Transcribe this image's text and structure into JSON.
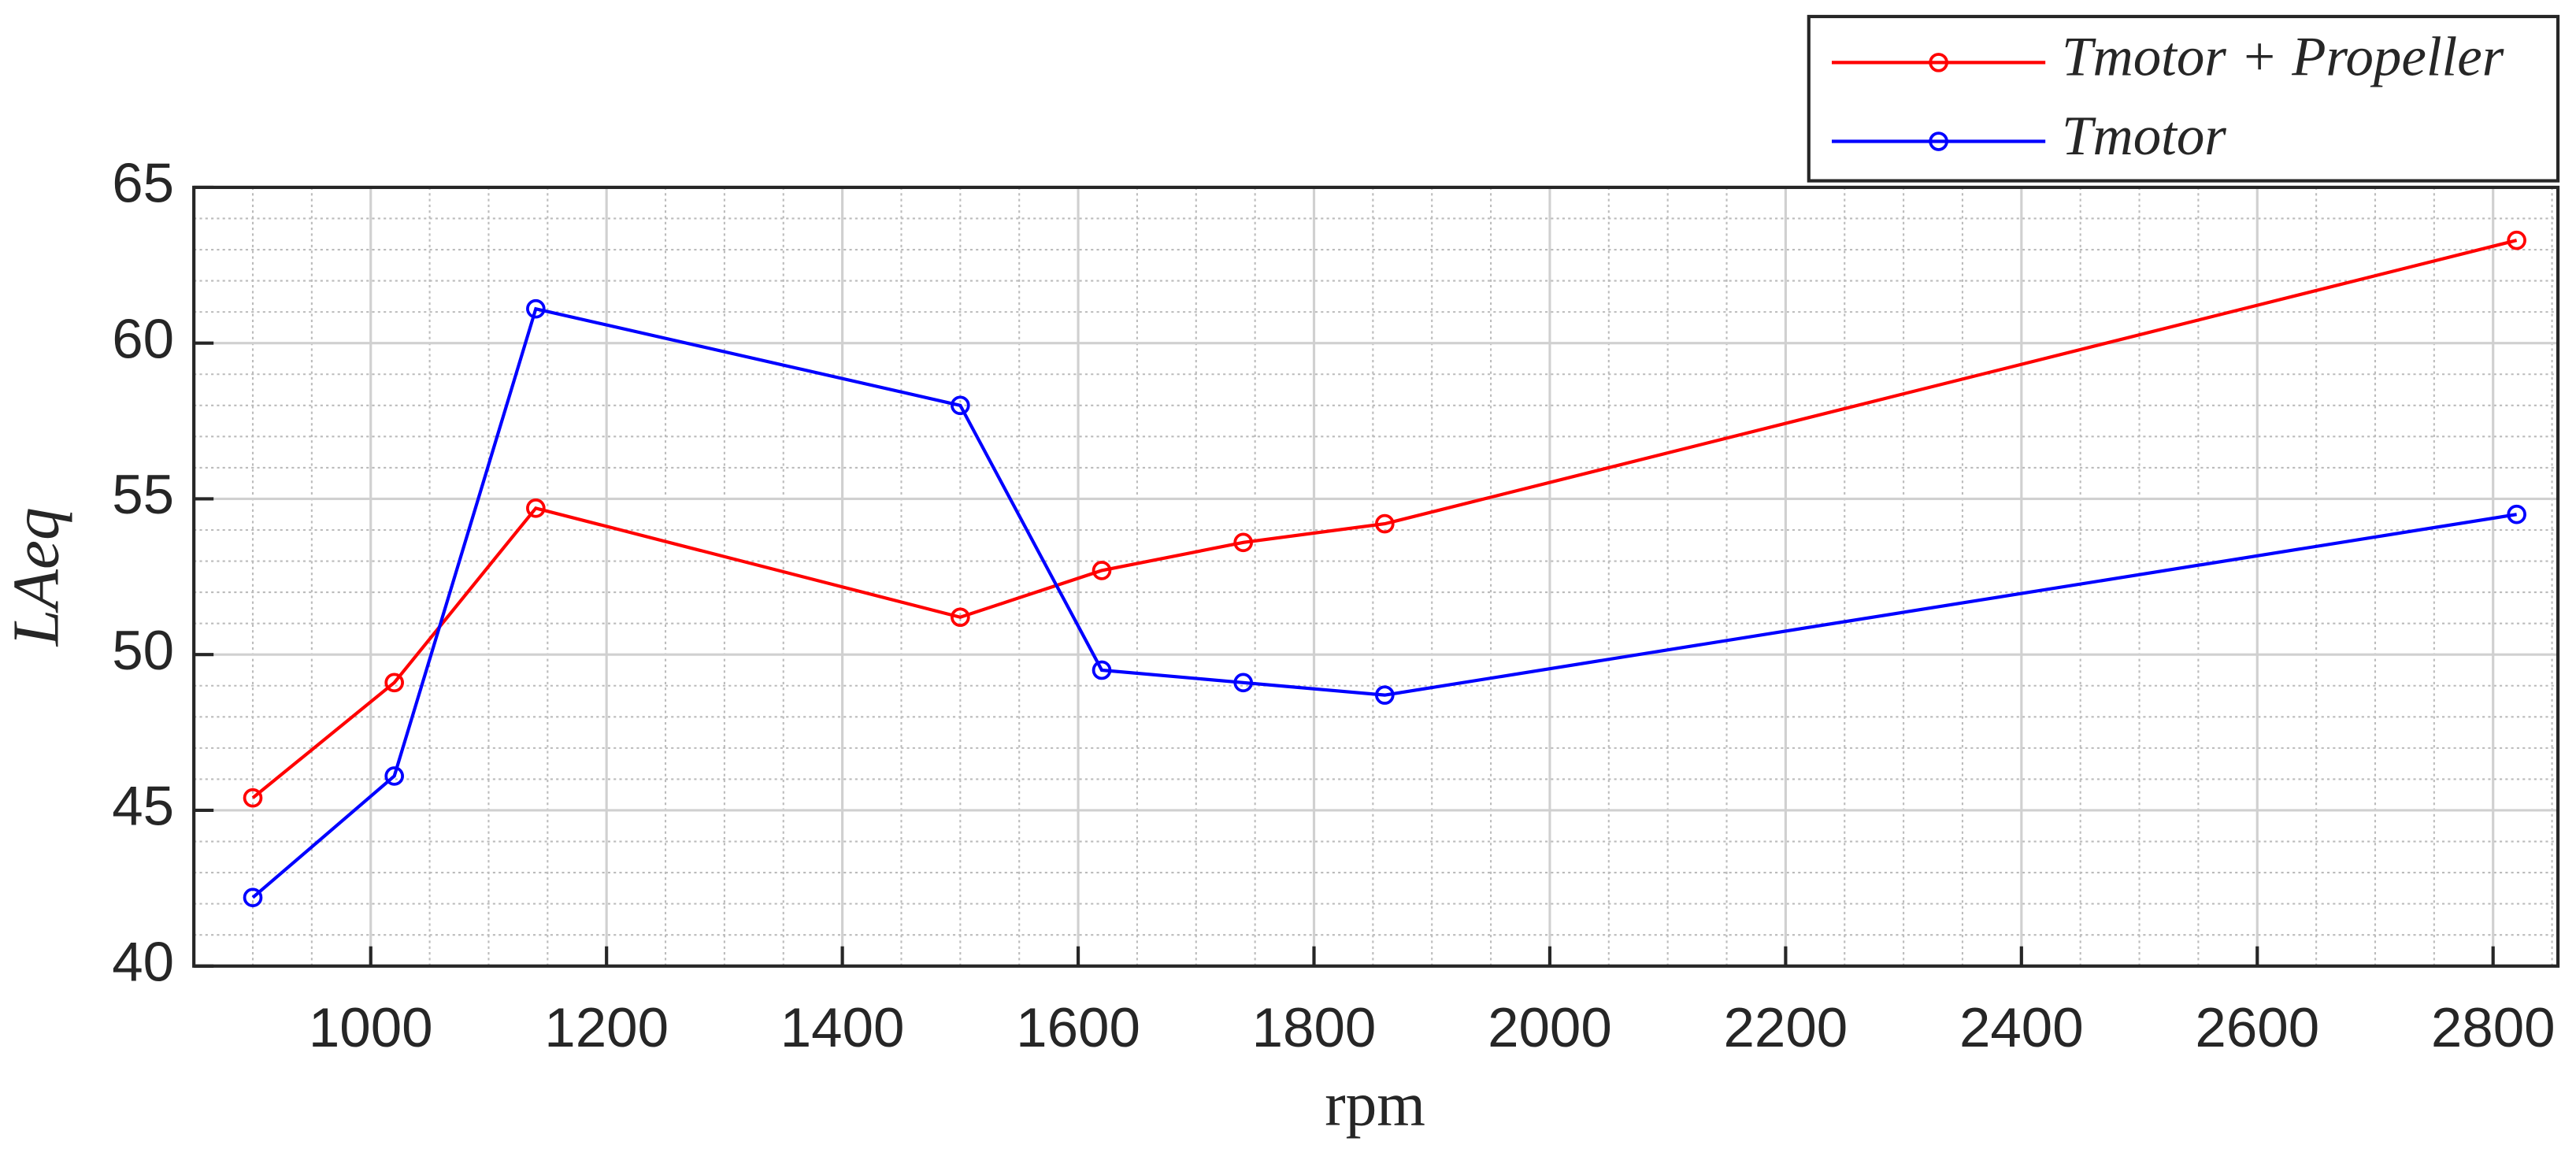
{
  "chart_data": {
    "type": "line",
    "x_label": "rpm",
    "y_label": "LAeq",
    "x": [
      900,
      1020,
      1140,
      1500,
      1620,
      1740,
      1860,
      2820
    ],
    "series": [
      {
        "name": "Tmotor + Propeller",
        "color": "#ff0000",
        "values": [
          45.4,
          49.1,
          54.7,
          51.2,
          52.7,
          53.6,
          54.2,
          63.3
        ]
      },
      {
        "name": "Tmotor",
        "color": "#0000ff",
        "values": [
          42.2,
          46.1,
          61.1,
          58.0,
          49.5,
          49.1,
          48.7,
          54.5
        ]
      }
    ],
    "xlim": [
      850,
      2855
    ],
    "ylim": [
      40,
      65
    ],
    "xticks": [
      1000,
      1200,
      1400,
      1600,
      1800,
      2000,
      2200,
      2400,
      2600,
      2800
    ],
    "yticks": [
      40,
      45,
      50,
      55,
      60,
      65
    ],
    "grid": true,
    "minor_grid": true,
    "legend": "top-right",
    "markers": "open-circle"
  }
}
